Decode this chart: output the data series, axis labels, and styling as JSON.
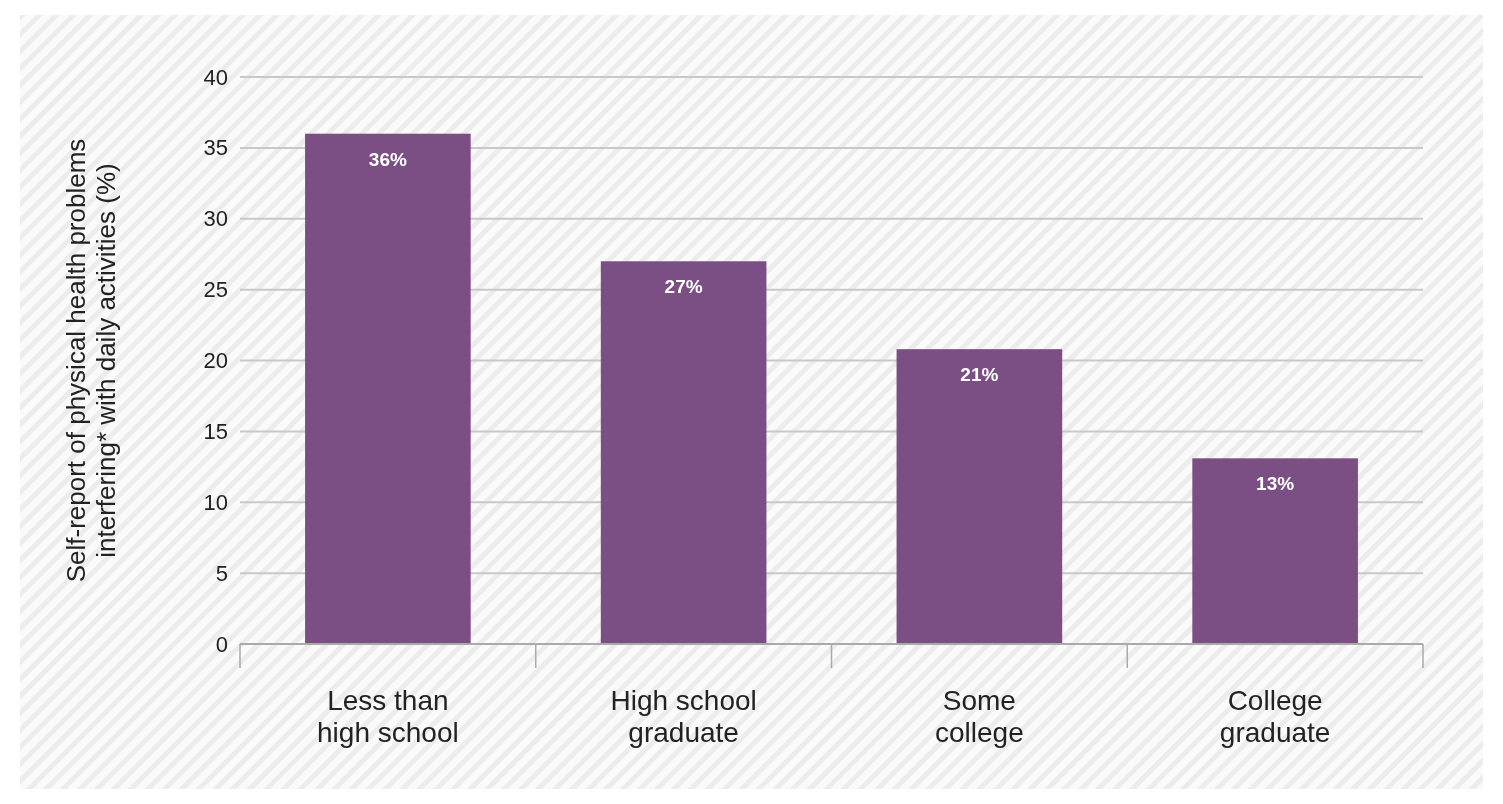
{
  "chart_data": {
    "type": "bar",
    "ylabel": "Self-report of physical health problems\ninterfering* with daily activities (%)",
    "categories": [
      "Less than\nhigh school",
      "High school\ngraduate",
      "Some\ncollege",
      "College\ngraduate"
    ],
    "values": [
      36,
      27,
      20.8,
      13.1
    ],
    "value_labels": [
      "36%",
      "27%",
      "21%",
      "13%"
    ],
    "color": "#7b4f83",
    "ylim": [
      0,
      40
    ],
    "yticks": [
      0,
      5,
      10,
      15,
      20,
      25,
      30,
      35,
      40
    ],
    "grid": "y"
  }
}
